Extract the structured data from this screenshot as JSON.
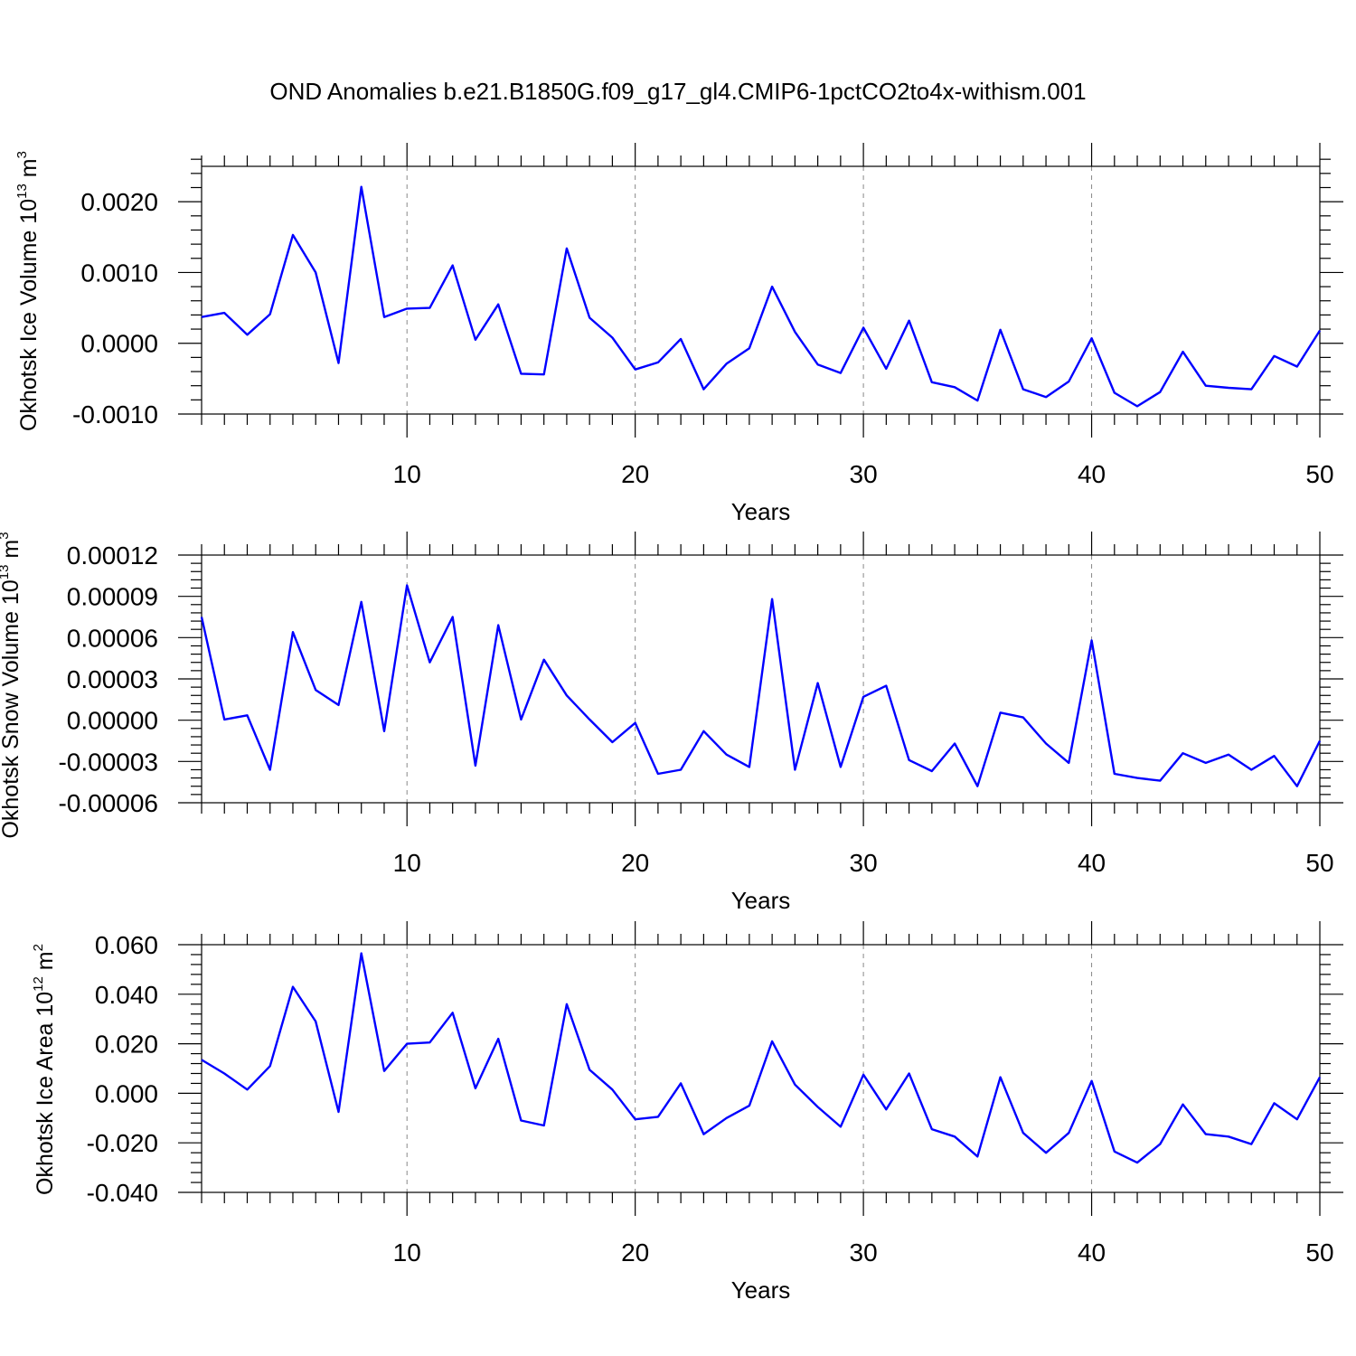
{
  "title": "OND Anomalies b.e21.B1850G.f09_g17_gl4.CMIP6-1pctCO2to4x-withism.001",
  "colors": {
    "series": "#0000ff",
    "grid": "#888888",
    "axis": "#000000"
  },
  "chart_data": [
    {
      "type": "line",
      "ylabel": {
        "text": "Okhotsk Ice Volume 10",
        "sup": "13",
        "unit": " m",
        "unit_sup": "3"
      },
      "xlabel": "Years",
      "xlim": [
        1,
        50
      ],
      "ylim": [
        -0.001,
        0.0025
      ],
      "xticks": [
        "10",
        "20",
        "30",
        "40",
        "50"
      ],
      "yticks": [
        "0.0020",
        "0.0010",
        "0.0000",
        "-0.0010"
      ],
      "grid": "x-dashed",
      "x": [
        1,
        2,
        3,
        4,
        5,
        6,
        7,
        8,
        9,
        10,
        11,
        12,
        13,
        14,
        15,
        16,
        17,
        18,
        19,
        20,
        21,
        22,
        23,
        24,
        25,
        26,
        27,
        28,
        29,
        30,
        31,
        32,
        33,
        34,
        35,
        36,
        37,
        38,
        39,
        40,
        41,
        42,
        43,
        44,
        45,
        46,
        47,
        48,
        49,
        50
      ],
      "values": [
        0.00037,
        0.00043,
        0.00012,
        0.00041,
        0.00153,
        0.001,
        -0.00028,
        0.00221,
        0.00037,
        0.00049,
        0.0005,
        0.0011,
        5e-05,
        0.00055,
        -0.00043,
        -0.00044,
        0.00134,
        0.00036,
        8e-05,
        -0.00037,
        -0.00027,
        6e-05,
        -0.00065,
        -0.00029,
        -7e-05,
        0.0008,
        0.00016,
        -0.0003,
        -0.00042,
        0.00022,
        -0.00036,
        0.00032,
        -0.00055,
        -0.00062,
        -0.00081,
        0.00019,
        -0.00065,
        -0.00076,
        -0.00054,
        7e-05,
        -0.0007,
        -0.00089,
        -0.00069,
        -0.00012,
        -0.0006,
        -0.00063,
        -0.00065,
        -0.00018,
        -0.00033,
        0.00018
      ]
    },
    {
      "type": "line",
      "ylabel": {
        "text": "Okhotsk Snow Volume 10",
        "sup": "13",
        "unit": " m",
        "unit_sup": "3"
      },
      "xlabel": "Years",
      "xlim": [
        1,
        50
      ],
      "ylim": [
        -6e-05,
        0.00012
      ],
      "xticks": [
        "10",
        "20",
        "30",
        "40",
        "50"
      ],
      "yticks": [
        "0.00012",
        "0.00009",
        "0.00006",
        "0.00003",
        "0.00000",
        "-0.00003",
        "-0.00006"
      ],
      "grid": "x-dashed",
      "x": [
        1,
        2,
        3,
        4,
        5,
        6,
        7,
        8,
        9,
        10,
        11,
        12,
        13,
        14,
        15,
        16,
        17,
        18,
        19,
        20,
        21,
        22,
        23,
        24,
        25,
        26,
        27,
        28,
        29,
        30,
        31,
        32,
        33,
        34,
        35,
        36,
        37,
        38,
        39,
        40,
        41,
        42,
        43,
        44,
        45,
        46,
        47,
        48,
        49,
        50
      ],
      "values": [
        7.5e-05,
        5e-07,
        3.5e-06,
        -3.6e-05,
        6.4e-05,
        2.2e-05,
        1.1e-05,
        8.6e-05,
        -8e-06,
        9.8e-05,
        4.2e-05,
        7.5e-05,
        -3.3e-05,
        6.9e-05,
        5e-07,
        4.4e-05,
        1.8e-05,
        5e-07,
        -1.6e-05,
        -2e-06,
        -3.9e-05,
        -3.6e-05,
        -8e-06,
        -2.5e-05,
        -3.4e-05,
        8.8e-05,
        -3.6e-05,
        2.7e-05,
        -3.4e-05,
        1.7e-05,
        2.5e-05,
        -2.9e-05,
        -3.7e-05,
        -1.7e-05,
        -4.8e-05,
        5.5e-06,
        2e-06,
        -1.7e-05,
        -3.1e-05,
        5.8e-05,
        -3.9e-05,
        -4.2e-05,
        -4.4e-05,
        -2.4e-05,
        -3.1e-05,
        -2.5e-05,
        -3.6e-05,
        -2.6e-05,
        -4.8e-05,
        -1.5e-05
      ]
    },
    {
      "type": "line",
      "ylabel": {
        "text": "Okhotsk Ice Area 10",
        "sup": "12",
        "unit": " m",
        "unit_sup": "2"
      },
      "xlabel": "Years",
      "xlim": [
        1,
        50
      ],
      "ylim": [
        -0.04,
        0.06
      ],
      "xticks": [
        "10",
        "20",
        "30",
        "40",
        "50"
      ],
      "yticks": [
        "0.060",
        "0.040",
        "0.020",
        "0.000",
        "-0.020",
        "-0.040"
      ],
      "grid": "x-dashed",
      "x": [
        1,
        2,
        3,
        4,
        5,
        6,
        7,
        8,
        9,
        10,
        11,
        12,
        13,
        14,
        15,
        16,
        17,
        18,
        19,
        20,
        21,
        22,
        23,
        24,
        25,
        26,
        27,
        28,
        29,
        30,
        31,
        32,
        33,
        34,
        35,
        36,
        37,
        38,
        39,
        40,
        41,
        42,
        43,
        44,
        45,
        46,
        47,
        48,
        49,
        50
      ],
      "values": [
        0.0135,
        0.008,
        0.0015,
        0.011,
        0.043,
        0.029,
        -0.0075,
        0.0565,
        0.009,
        0.02,
        0.0205,
        0.0325,
        0.002,
        0.022,
        -0.011,
        -0.013,
        0.036,
        0.0095,
        0.0015,
        -0.0105,
        -0.0095,
        0.004,
        -0.0165,
        -0.01,
        -0.005,
        0.021,
        0.0035,
        -0.0055,
        -0.0135,
        0.0075,
        -0.0065,
        0.008,
        -0.0145,
        -0.0175,
        -0.0255,
        0.0065,
        -0.016,
        -0.024,
        -0.016,
        0.005,
        -0.0235,
        -0.028,
        -0.0205,
        -0.0045,
        -0.0165,
        -0.0175,
        -0.0205,
        -0.004,
        -0.0105,
        0.0065
      ]
    }
  ]
}
